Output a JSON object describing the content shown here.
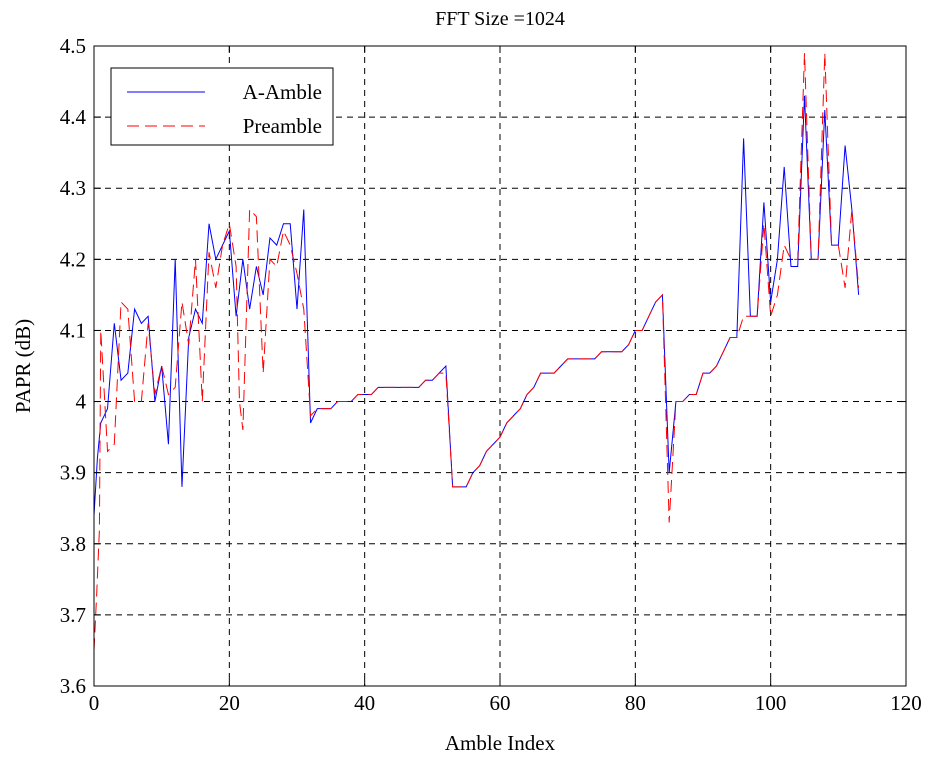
{
  "chart_data": {
    "type": "line",
    "title": "FFT  Size =1024",
    "xlabel": "Amble Index",
    "ylabel": "PAPR (dB)",
    "xlim": [
      0,
      120
    ],
    "ylim": [
      3.6,
      4.5
    ],
    "xticks": [
      "0",
      "20",
      "40",
      "60",
      "80",
      "100",
      "120"
    ],
    "yticks": [
      "3.6",
      "3.7",
      "3.8",
      "3.9",
      "4",
      "4.1",
      "4.2",
      "4.3",
      "4.4",
      "4.5"
    ],
    "grid": true,
    "grid_style": "dashed",
    "legend_position": "top-left",
    "series": [
      {
        "name": "A-Amble",
        "color": "#0000ff",
        "line_style": "solid",
        "points": [
          [
            0,
            3.84
          ],
          [
            0.5,
            3.92
          ],
          [
            1,
            3.97
          ],
          [
            2,
            3.99
          ],
          [
            3,
            4.11
          ],
          [
            4,
            4.03
          ],
          [
            5,
            4.04
          ],
          [
            6,
            4.13
          ],
          [
            7,
            4.11
          ],
          [
            8,
            4.12
          ],
          [
            9,
            4.0
          ],
          [
            10,
            4.05
          ],
          [
            11,
            3.94
          ],
          [
            12,
            4.2
          ],
          [
            13,
            3.88
          ],
          [
            14,
            4.09
          ],
          [
            15,
            4.13
          ],
          [
            16,
            4.11
          ],
          [
            17,
            4.25
          ],
          [
            18,
            4.2
          ],
          [
            19,
            4.22
          ],
          [
            20,
            4.24
          ],
          [
            21,
            4.12
          ],
          [
            22,
            4.2
          ],
          [
            23,
            4.13
          ],
          [
            24,
            4.19
          ],
          [
            25,
            4.15
          ],
          [
            26,
            4.23
          ],
          [
            27,
            4.22
          ],
          [
            28,
            4.25
          ],
          [
            29,
            4.25
          ],
          [
            30,
            4.13
          ],
          [
            31,
            4.27
          ],
          [
            32,
            3.97
          ],
          [
            33,
            3.99
          ],
          [
            34,
            3.99
          ],
          [
            35,
            3.99
          ],
          [
            36,
            4.0
          ],
          [
            37,
            4.0
          ],
          [
            38,
            4.0
          ],
          [
            39,
            4.01
          ],
          [
            40,
            4.01
          ],
          [
            41,
            4.01
          ],
          [
            42,
            4.02
          ],
          [
            43,
            4.02
          ],
          [
            44,
            4.02
          ],
          [
            45,
            4.02
          ],
          [
            46,
            4.02
          ],
          [
            47,
            4.02
          ],
          [
            48,
            4.02
          ],
          [
            49,
            4.03
          ],
          [
            50,
            4.03
          ],
          [
            51,
            4.04
          ],
          [
            52,
            4.05
          ],
          [
            53,
            3.88
          ],
          [
            54,
            3.88
          ],
          [
            55,
            3.88
          ],
          [
            56,
            3.9
          ],
          [
            57,
            3.91
          ],
          [
            58,
            3.93
          ],
          [
            59,
            3.94
          ],
          [
            60,
            3.95
          ],
          [
            61,
            3.97
          ],
          [
            62,
            3.98
          ],
          [
            63,
            3.99
          ],
          [
            64,
            4.01
          ],
          [
            65,
            4.02
          ],
          [
            66,
            4.04
          ],
          [
            67,
            4.04
          ],
          [
            68,
            4.04
          ],
          [
            69,
            4.05
          ],
          [
            70,
            4.06
          ],
          [
            71,
            4.06
          ],
          [
            72,
            4.06
          ],
          [
            73,
            4.06
          ],
          [
            74,
            4.06
          ],
          [
            75,
            4.07
          ],
          [
            76,
            4.07
          ],
          [
            77,
            4.07
          ],
          [
            78,
            4.07
          ],
          [
            79,
            4.08
          ],
          [
            80,
            4.1
          ],
          [
            81,
            4.1
          ],
          [
            82,
            4.12
          ],
          [
            83,
            4.14
          ],
          [
            84,
            4.15
          ],
          [
            85,
            3.9
          ],
          [
            86,
            4.0
          ],
          [
            87,
            4.0
          ],
          [
            88,
            4.01
          ],
          [
            89,
            4.01
          ],
          [
            90,
            4.04
          ],
          [
            91,
            4.04
          ],
          [
            92,
            4.05
          ],
          [
            93,
            4.07
          ],
          [
            94,
            4.09
          ],
          [
            95,
            4.09
          ],
          [
            96,
            4.37
          ],
          [
            97,
            4.12
          ],
          [
            98,
            4.12
          ],
          [
            99,
            4.28
          ],
          [
            100,
            4.14
          ],
          [
            101,
            4.2
          ],
          [
            102,
            4.33
          ],
          [
            103,
            4.19
          ],
          [
            104,
            4.19
          ],
          [
            105,
            4.43
          ],
          [
            106,
            4.2
          ],
          [
            107,
            4.2
          ],
          [
            108,
            4.41
          ],
          [
            109,
            4.22
          ],
          [
            110,
            4.22
          ],
          [
            111,
            4.36
          ],
          [
            112,
            4.27
          ],
          [
            113,
            4.15
          ]
        ]
      },
      {
        "name": "Preamble",
        "color": "#ff0000",
        "line_style": "dashed",
        "points": [
          [
            0,
            3.65
          ],
          [
            0.4,
            3.73
          ],
          [
            0.8,
            3.82
          ],
          [
            1,
            4.1
          ],
          [
            2,
            3.93
          ],
          [
            3,
            3.94
          ],
          [
            4,
            4.14
          ],
          [
            5,
            4.13
          ],
          [
            6,
            4.0
          ],
          [
            7,
            4.0
          ],
          [
            8,
            4.11
          ],
          [
            9,
            4.01
          ],
          [
            10,
            4.05
          ],
          [
            11,
            4.01
          ],
          [
            12,
            4.02
          ],
          [
            13,
            4.14
          ],
          [
            14,
            4.08
          ],
          [
            15,
            4.2
          ],
          [
            16,
            4.0
          ],
          [
            17,
            4.21
          ],
          [
            18,
            4.16
          ],
          [
            19,
            4.22
          ],
          [
            20,
            4.25
          ],
          [
            21,
            4.19
          ],
          [
            21.5,
            4.0
          ],
          [
            22,
            3.96
          ],
          [
            23,
            4.27
          ],
          [
            24,
            4.26
          ],
          [
            25,
            4.04
          ],
          [
            26,
            4.2
          ],
          [
            27,
            4.19
          ],
          [
            28,
            4.24
          ],
          [
            29,
            4.22
          ],
          [
            30,
            4.18
          ],
          [
            31,
            4.13
          ],
          [
            32,
            3.98
          ],
          [
            33,
            3.99
          ],
          [
            34,
            3.99
          ],
          [
            35,
            3.99
          ],
          [
            36,
            4.0
          ],
          [
            37,
            4.0
          ],
          [
            38,
            4.0
          ],
          [
            39,
            4.01
          ],
          [
            40,
            4.01
          ],
          [
            41,
            4.01
          ],
          [
            42,
            4.02
          ],
          [
            43,
            4.02
          ],
          [
            44,
            4.02
          ],
          [
            45,
            4.02
          ],
          [
            46,
            4.02
          ],
          [
            47,
            4.02
          ],
          [
            48,
            4.02
          ],
          [
            49,
            4.03
          ],
          [
            50,
            4.03
          ],
          [
            51,
            4.04
          ],
          [
            52,
            4.04
          ],
          [
            53,
            3.88
          ],
          [
            54,
            3.88
          ],
          [
            55,
            3.88
          ],
          [
            56,
            3.9
          ],
          [
            57,
            3.91
          ],
          [
            58,
            3.93
          ],
          [
            59,
            3.94
          ],
          [
            60,
            3.95
          ],
          [
            61,
            3.97
          ],
          [
            62,
            3.98
          ],
          [
            63,
            3.99
          ],
          [
            64,
            4.01
          ],
          [
            65,
            4.02
          ],
          [
            66,
            4.04
          ],
          [
            67,
            4.04
          ],
          [
            68,
            4.04
          ],
          [
            69,
            4.05
          ],
          [
            70,
            4.06
          ],
          [
            71,
            4.06
          ],
          [
            72,
            4.06
          ],
          [
            73,
            4.06
          ],
          [
            74,
            4.06
          ],
          [
            75,
            4.07
          ],
          [
            76,
            4.07
          ],
          [
            77,
            4.07
          ],
          [
            78,
            4.07
          ],
          [
            79,
            4.08
          ],
          [
            80,
            4.1
          ],
          [
            81,
            4.1
          ],
          [
            82,
            4.12
          ],
          [
            83,
            4.14
          ],
          [
            84,
            4.15
          ],
          [
            85,
            3.83
          ],
          [
            86,
            4.0
          ],
          [
            87,
            4.0
          ],
          [
            88,
            4.01
          ],
          [
            89,
            4.01
          ],
          [
            90,
            4.04
          ],
          [
            91,
            4.04
          ],
          [
            92,
            4.05
          ],
          [
            93,
            4.07
          ],
          [
            94,
            4.09
          ],
          [
            95,
            4.09
          ],
          [
            96,
            4.12
          ],
          [
            97,
            4.12
          ],
          [
            98,
            4.12
          ],
          [
            99,
            4.25
          ],
          [
            100,
            4.12
          ],
          [
            101,
            4.15
          ],
          [
            102,
            4.22
          ],
          [
            103,
            4.2
          ],
          [
            104,
            4.2
          ],
          [
            105,
            4.49
          ],
          [
            106,
            4.2
          ],
          [
            107,
            4.2
          ],
          [
            108,
            4.49
          ],
          [
            109,
            4.22
          ],
          [
            110,
            4.22
          ],
          [
            111,
            4.16
          ],
          [
            112,
            4.27
          ],
          [
            113,
            4.16
          ]
        ]
      }
    ]
  }
}
